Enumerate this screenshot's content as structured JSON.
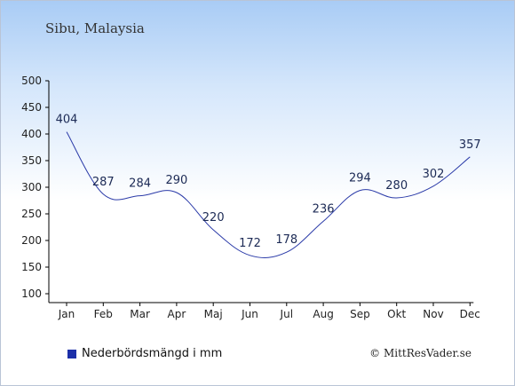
{
  "header": {
    "location": "Sibu, Malaysia"
  },
  "legend": {
    "label": "Nederbördsmängd i mm"
  },
  "footer": {
    "credit": "© MittResVader.se"
  },
  "colors": {
    "line": "#2a3aa8",
    "label": "#1c2a55",
    "swatch": "#1c2fa8"
  },
  "chart_data": {
    "type": "line",
    "title": "",
    "xlabel": "",
    "ylabel": "",
    "categories": [
      "Jan",
      "Feb",
      "Mar",
      "Apr",
      "Maj",
      "Jun",
      "Jul",
      "Aug",
      "Sep",
      "Okt",
      "Nov",
      "Dec"
    ],
    "series": [
      {
        "name": "Nederbördsmängd i mm",
        "values": [
          404,
          287,
          284,
          290,
          220,
          172,
          178,
          236,
          294,
          280,
          302,
          357
        ]
      }
    ],
    "ylim": [
      100,
      500
    ],
    "yticks": [
      100,
      150,
      200,
      250,
      300,
      350,
      400,
      450,
      500
    ],
    "grid": false,
    "legend": "bottom-left"
  }
}
